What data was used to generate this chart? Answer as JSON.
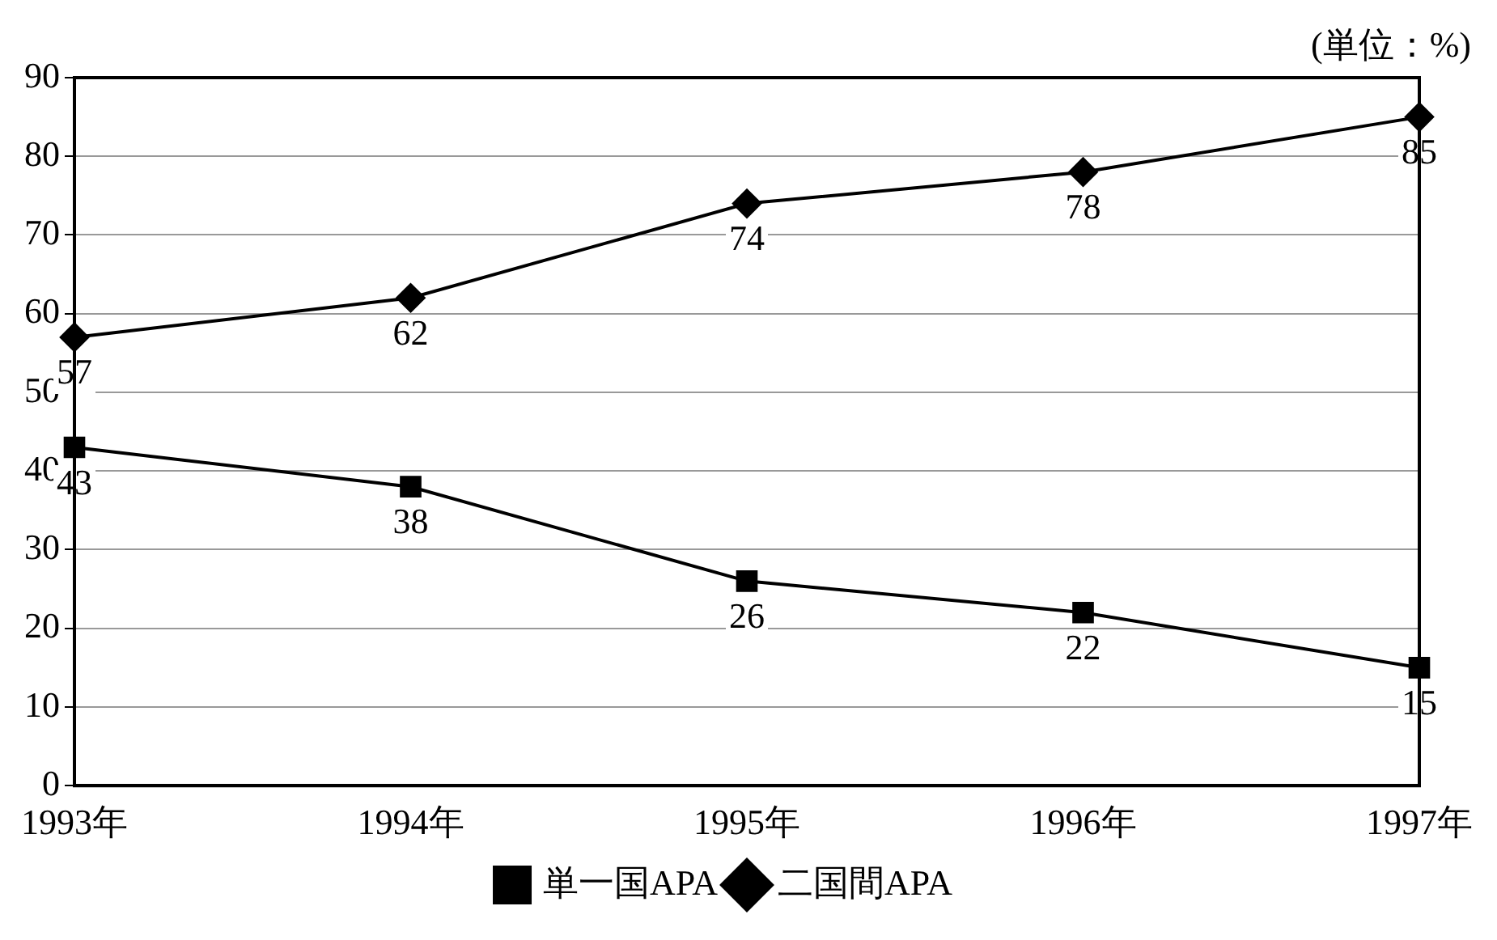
{
  "chart_data": {
    "type": "line",
    "annotations": [
      "(単位：%)"
    ],
    "categories": [
      "1993年",
      "1994年",
      "1995年",
      "1996年",
      "1997年"
    ],
    "series": [
      {
        "name": "単一国APA",
        "color": "#000000",
        "marker": "square",
        "values": [
          43,
          38,
          26,
          22,
          15
        ]
      },
      {
        "name": "二国間APA",
        "color": "#000000",
        "marker": "diamond",
        "values": [
          57,
          62,
          74,
          78,
          85
        ]
      }
    ],
    "ylim": [
      0,
      90
    ],
    "yticks": [
      0,
      10,
      20,
      30,
      40,
      50,
      60,
      70,
      80,
      90
    ],
    "grid": "y",
    "legend": "bottom",
    "data_labels": true,
    "line_style": "solid"
  }
}
